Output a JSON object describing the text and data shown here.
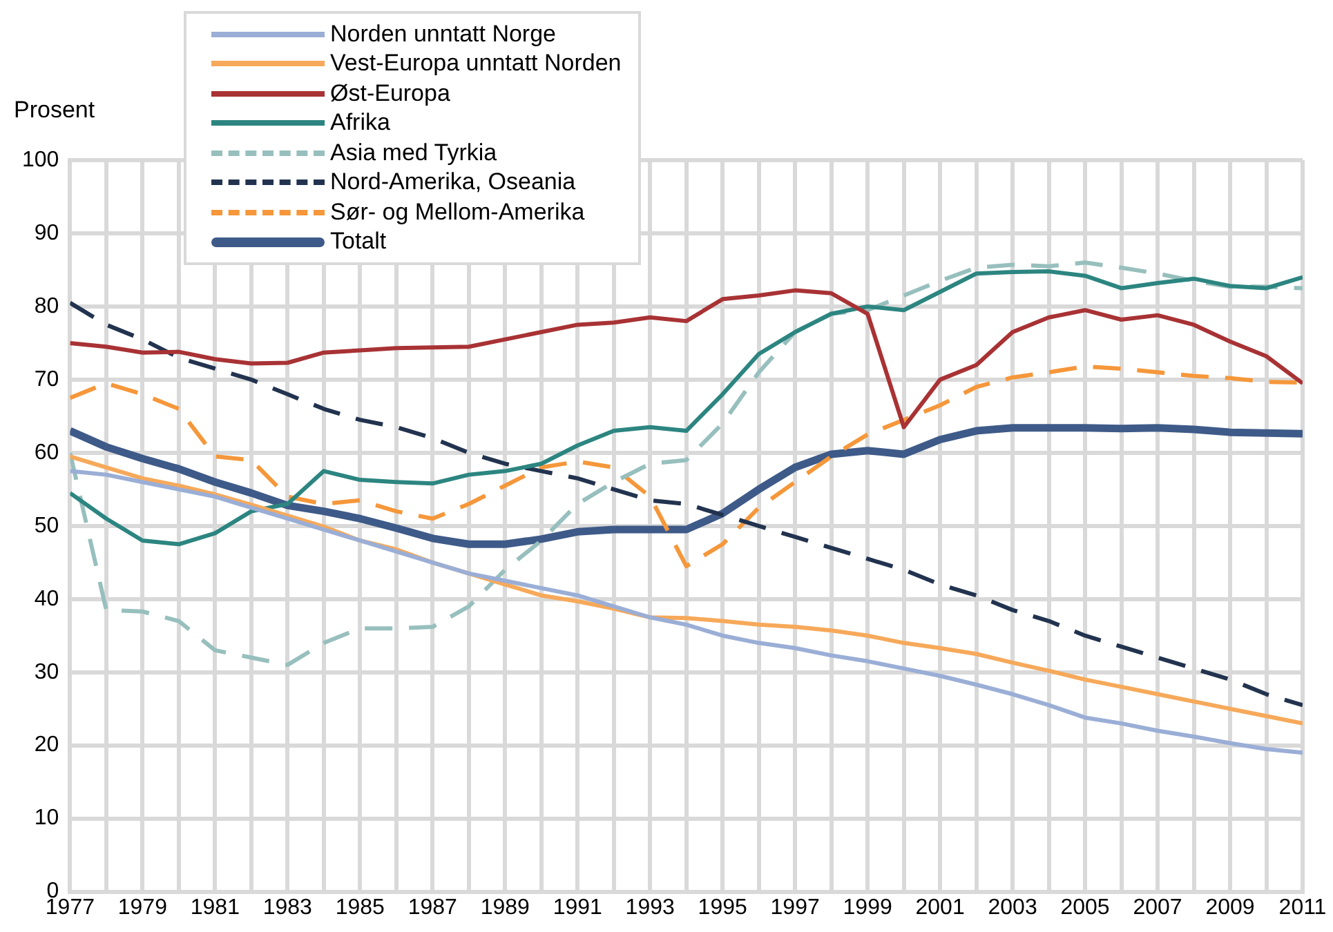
{
  "chart_data": {
    "type": "line",
    "ylabel": "Prosent",
    "legend": "top left",
    "grid": true,
    "marker": "none",
    "x": [
      1977,
      1978,
      1979,
      1980,
      1981,
      1982,
      1983,
      1984,
      1985,
      1986,
      1987,
      1988,
      1989,
      1990,
      1991,
      1992,
      1993,
      1994,
      1995,
      1996,
      1997,
      1998,
      1999,
      2000,
      2001,
      2002,
      2003,
      2004,
      2005,
      2006,
      2007,
      2008,
      2009,
      2010,
      2011
    ],
    "xlim": [
      1977,
      2011
    ],
    "xticks": [
      1977,
      {
        "value": 1978,
        "label": null
      },
      1979,
      {
        "value": 1980,
        "label": null
      },
      1981,
      {
        "value": 1982,
        "label": null
      },
      1983,
      {
        "value": 1984,
        "label": null
      },
      1985,
      {
        "value": 1986,
        "label": null
      },
      1987,
      {
        "value": 1988,
        "label": null
      },
      1989,
      {
        "value": 1990,
        "label": null
      },
      1991,
      {
        "value": 1992,
        "label": null
      },
      1993,
      {
        "value": 1994,
        "label": null
      },
      1995,
      {
        "value": 1996,
        "label": null
      },
      1997,
      {
        "value": 1998,
        "label": null
      },
      1999,
      {
        "value": 2000,
        "label": null
      },
      2001,
      {
        "value": 2002,
        "label": null
      },
      2003,
      {
        "value": 2004,
        "label": null
      },
      2005,
      {
        "value": 2006,
        "label": null
      },
      2007,
      {
        "value": 2008,
        "label": null
      },
      2009,
      {
        "value": 2010,
        "label": null
      },
      2011
    ],
    "ylim": [
      0,
      100
    ],
    "yticks": [
      0,
      10,
      20,
      30,
      40,
      50,
      60,
      70,
      80,
      90,
      100
    ],
    "series": [
      {
        "name": "Norden unntatt Norge",
        "color": "#9aaed6",
        "line_style": "solid",
        "values": [
          57.5,
          57,
          56,
          55,
          54,
          52.5,
          51,
          49.5,
          48,
          46.5,
          45,
          43.5,
          42.5,
          41.5,
          40.5,
          39,
          37.5,
          36.5,
          35,
          34,
          33.3,
          32.3,
          31.5,
          30.5,
          29.5,
          28.3,
          27,
          25.5,
          23.8,
          23,
          22,
          21.2,
          20.3,
          19.5,
          19
        ]
      },
      {
        "name": "Vest-Europa unntatt Norden",
        "color": "#f6a95a",
        "line_style": "solid",
        "values": [
          59.5,
          58,
          56.5,
          55.5,
          54.3,
          52.9,
          51.4,
          49.9,
          48,
          46.8,
          45,
          43.5,
          42,
          40.5,
          39.7,
          38.7,
          37.5,
          37.4,
          37,
          36.5,
          36.2,
          35.7,
          35,
          34,
          33.3,
          32.5,
          31.3,
          30.2,
          29,
          28,
          27,
          26,
          25,
          24,
          23
        ]
      },
      {
        "name": "Øst-Europa",
        "color": "#a83234",
        "line_style": "solid",
        "values": [
          75,
          74.5,
          73.7,
          73.8,
          72.8,
          72.2,
          72.3,
          73.7,
          74,
          74.3,
          74.4,
          74.5,
          75.5,
          76.5,
          77.5,
          77.8,
          78.5,
          78,
          81,
          81.5,
          82.2,
          81.8,
          79,
          63.5,
          70,
          72,
          76.5,
          78.5,
          79.5,
          78.2,
          78.8,
          77.5,
          75.2,
          73.2,
          69.5
        ]
      },
      {
        "name": "Afrika",
        "color": "#2c8580",
        "line_style": "solid",
        "values": [
          54.5,
          51,
          48,
          47.5,
          49,
          52,
          53,
          57.5,
          56.3,
          56,
          55.8,
          57,
          57.5,
          58.5,
          61,
          63,
          63.5,
          63,
          68,
          73.5,
          76.5,
          79,
          80,
          79.5,
          82,
          84.5,
          84.7,
          84.8,
          84.2,
          82.5,
          83.2,
          83.8,
          82.8,
          82.5,
          84
        ]
      },
      {
        "name": "Asia med Tyrkia",
        "color": "#97bfbd",
        "line_style": "dashed",
        "values": [
          60,
          38.5,
          38.3,
          37,
          33,
          32,
          31,
          34,
          36,
          36,
          36.2,
          39,
          44,
          48,
          53,
          56,
          58.5,
          59,
          64,
          71,
          76.5,
          79,
          79.5,
          81.5,
          83.5,
          85.3,
          85.7,
          85.5,
          86,
          85.3,
          84.5,
          83.5,
          82.7,
          82.7,
          82.5
        ]
      },
      {
        "name": "Nord-Amerika, Oseania",
        "color": "#22334f",
        "line_style": "dashed",
        "values": [
          80.5,
          77.5,
          75.5,
          73,
          71.5,
          70,
          68,
          66,
          64.5,
          63.5,
          62,
          60,
          58.5,
          57.5,
          56.5,
          55,
          53.5,
          53,
          51.5,
          50,
          48.5,
          47,
          45.5,
          44,
          42,
          40.5,
          38.5,
          37,
          35,
          33.5,
          32,
          30.5,
          29,
          27,
          25.5
        ]
      },
      {
        "name": "Sør- og Mellom-Amerika",
        "color": "#f5973a",
        "line_style": "dashed",
        "values": [
          67.5,
          69.5,
          68,
          66,
          59.5,
          59,
          54,
          53,
          53.5,
          52,
          51,
          53,
          55.5,
          58,
          58.8,
          58,
          54,
          44.5,
          47.5,
          52.5,
          56,
          59.5,
          62.5,
          64.5,
          66.5,
          69,
          70.3,
          71,
          71.8,
          71.5,
          71,
          70.5,
          70.2,
          69.7,
          69.6
        ]
      },
      {
        "name": "Totalt",
        "color": "#3e5a88",
        "line_style": "solid",
        "values": [
          63,
          60.8,
          59.2,
          57.8,
          56,
          54.5,
          52.8,
          52,
          51,
          49.7,
          48.3,
          47.5,
          47.5,
          48.2,
          49.2,
          49.5,
          49.5,
          49.5,
          51.7,
          55,
          58,
          59.8,
          60.3,
          59.8,
          61.8,
          63,
          63.4,
          63.4,
          63.4,
          63.3,
          63.4,
          63.2,
          62.8,
          62.7,
          62.6
        ]
      }
    ]
  }
}
